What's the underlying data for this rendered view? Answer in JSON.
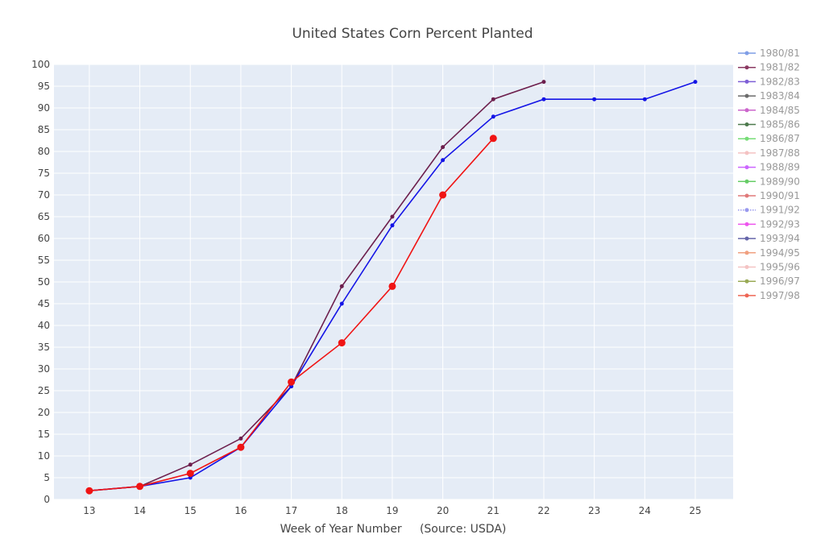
{
  "chart_data": {
    "type": "line",
    "title": "United States Corn Percent Planted",
    "xlabel": "Week of Year Number     (Source: USDA)",
    "ylabel": "",
    "xlim": [
      12.3,
      25.75
    ],
    "ylim": [
      0,
      100
    ],
    "x_ticks": [
      13,
      14,
      15,
      16,
      17,
      18,
      19,
      20,
      21,
      22,
      23,
      24,
      25
    ],
    "y_ticks": [
      0,
      5,
      10,
      15,
      20,
      25,
      30,
      35,
      40,
      45,
      50,
      55,
      60,
      65,
      70,
      75,
      80,
      85,
      90,
      95,
      100
    ],
    "grid": true,
    "legend_position": "right",
    "series": [
      {
        "name": "1980/81",
        "color": "#7f9ee6",
        "legend_only": true,
        "points": []
      },
      {
        "name": "1981/82",
        "color": "#8b3a62",
        "legend_only": true,
        "points": []
      },
      {
        "name": "1982/83",
        "color": "#7e5fd6",
        "legend_only": true,
        "points": []
      },
      {
        "name": "1983/84",
        "color": "#6b6b6b",
        "legend_only": true,
        "points": []
      },
      {
        "name": "1984/85",
        "color": "#cc66cc",
        "legend_only": true,
        "points": []
      },
      {
        "name": "1985/86",
        "color": "#4d7a4d",
        "legend_only": true,
        "points": []
      },
      {
        "name": "1986/87",
        "color": "#77dd77",
        "legend_only": true,
        "points": []
      },
      {
        "name": "1987/88",
        "color": "#f4c2c2",
        "legend_only": true,
        "points": []
      },
      {
        "name": "1988/89",
        "color": "#cc66ff",
        "legend_only": true,
        "points": []
      },
      {
        "name": "1989/90",
        "color": "#66cc66",
        "legend_only": true,
        "points": []
      },
      {
        "name": "1990/91",
        "color": "#e07a7a",
        "legend_only": true,
        "points": []
      },
      {
        "name": "1991/92",
        "color": "#9999ee",
        "legend_only": true,
        "dotted": true,
        "points": []
      },
      {
        "name": "1992/93",
        "color": "#ee55ee",
        "legend_only": true,
        "points": []
      },
      {
        "name": "1993/94",
        "color": "#6666aa",
        "legend_only": true,
        "points": []
      },
      {
        "name": "1994/95",
        "color": "#f0a080",
        "legend_only": true,
        "points": []
      },
      {
        "name": "1995/96",
        "color": "#f4c4c4",
        "legend_only": true,
        "points": []
      },
      {
        "name": "1996/97",
        "color": "#99aa55",
        "legend_only": true,
        "points": []
      },
      {
        "name": "1997/98",
        "color": "#ee6655",
        "legend_only": true,
        "points": []
      },
      {
        "name": "",
        "color": "#6d1f4d",
        "marker_size": 2.5,
        "points": [
          [
            13,
            2
          ],
          [
            14,
            3
          ],
          [
            15,
            8
          ],
          [
            16,
            14
          ],
          [
            17,
            26
          ],
          [
            18,
            49
          ],
          [
            19,
            65
          ],
          [
            20,
            81
          ],
          [
            21,
            92
          ],
          [
            22,
            96
          ]
        ]
      },
      {
        "name": "",
        "color": "#1414e6",
        "marker_size": 2.5,
        "points": [
          [
            13,
            2
          ],
          [
            14,
            3
          ],
          [
            15,
            5
          ],
          [
            16,
            12
          ],
          [
            17,
            26
          ],
          [
            18,
            45
          ],
          [
            19,
            63
          ],
          [
            20,
            78
          ],
          [
            21,
            88
          ],
          [
            22,
            92
          ],
          [
            23,
            92
          ],
          [
            24,
            92
          ],
          [
            25,
            96
          ]
        ]
      },
      {
        "name": "",
        "color": "#f01414",
        "marker_size": 4.5,
        "points": [
          [
            13,
            2
          ],
          [
            14,
            3
          ],
          [
            15,
            6
          ],
          [
            16,
            12
          ],
          [
            17,
            27
          ],
          [
            18,
            36
          ],
          [
            19,
            49
          ],
          [
            20,
            70
          ],
          [
            21,
            83
          ]
        ]
      }
    ]
  }
}
